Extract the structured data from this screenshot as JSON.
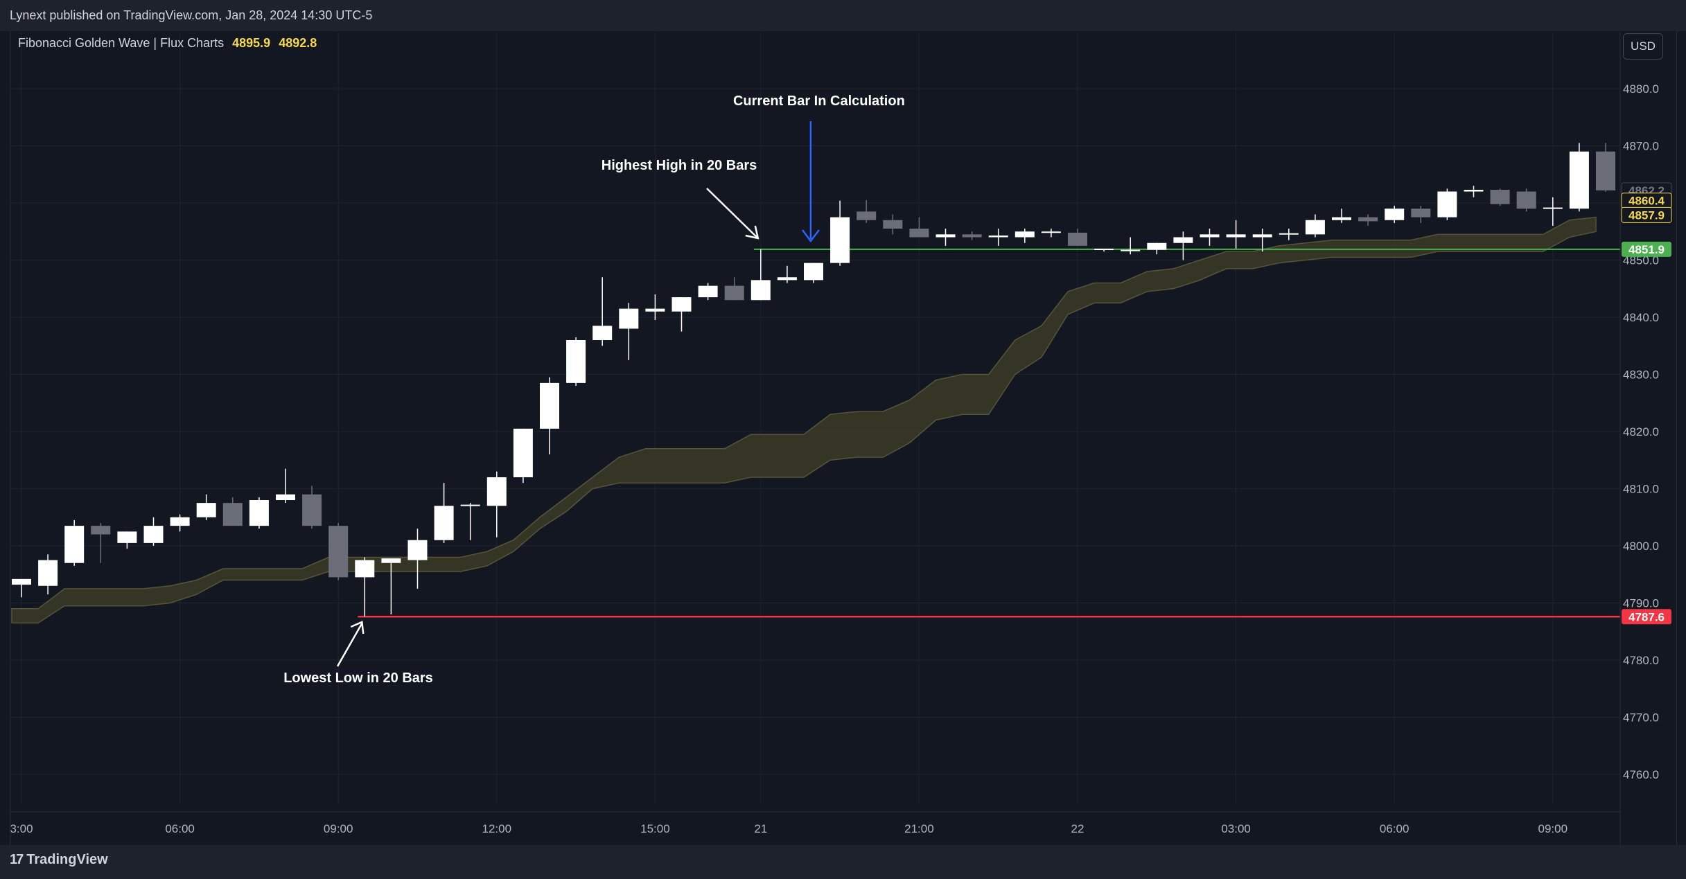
{
  "header": {
    "publisher_text": "Lynext published on TradingView.com, Jan 28, 2024 14:30 UTC-5"
  },
  "legend": {
    "indicator": "Fibonacci Golden Wave | Flux Charts",
    "value1": "4895.9",
    "value2": "4892.8"
  },
  "currency_button": "USD",
  "footer": {
    "brand": "TradingView",
    "logo_icon": "tradingview-logo-icon"
  },
  "colors": {
    "bullish": "#ffffff",
    "bearish": "#6b6e78",
    "band_fill": "#3a3926",
    "band_stroke": "#57543a",
    "high_line": "#4caf50",
    "low_line": "#f23645",
    "annotation_arrow": "#ffffff",
    "calc_arrow": "#2962ff",
    "tag_yellow": "#f7d94c",
    "grid": "#1f2330"
  },
  "chart_data": {
    "type": "candlestick",
    "x_axis": {
      "tick_labels": [
        "3:00",
        "06:00",
        "09:00",
        "12:00",
        "15:00",
        "21",
        "21:00",
        "22",
        "03:00",
        "06:00",
        "09:00"
      ],
      "tick_bar_index": [
        0,
        6,
        12,
        18,
        24,
        28,
        34,
        40,
        46,
        52,
        58
      ]
    },
    "y_axis": {
      "ylim": [
        4757,
        4885
      ],
      "tick_labels": [
        "4880.0",
        "4870.0",
        "4860.0",
        "4850.0",
        "4840.0",
        "4830.0",
        "4820.0",
        "4810.0",
        "4800.0",
        "4790.0",
        "4780.0",
        "4770.0",
        "4760.0"
      ],
      "tick_values": [
        4880,
        4870,
        4860,
        4850,
        4840,
        4830,
        4820,
        4810,
        4800,
        4790,
        4780,
        4770,
        4760
      ]
    },
    "candles": [
      {
        "o": 4793.2,
        "h": 4794.0,
        "l": 4791.0,
        "c": 4794.2
      },
      {
        "o": 4793.0,
        "h": 4798.5,
        "l": 4791.5,
        "c": 4797.5
      },
      {
        "o": 4797.0,
        "h": 4804.5,
        "l": 4796.5,
        "c": 4803.5
      },
      {
        "o": 4803.5,
        "h": 4804.0,
        "l": 4797.0,
        "c": 4802.0
      },
      {
        "o": 4800.5,
        "h": 4802.5,
        "l": 4799.5,
        "c": 4802.5
      },
      {
        "o": 4800.5,
        "h": 4805.0,
        "l": 4800.0,
        "c": 4803.5
      },
      {
        "o": 4803.5,
        "h": 4805.5,
        "l": 4802.5,
        "c": 4805.0
      },
      {
        "o": 4805.0,
        "h": 4809.0,
        "l": 4804.5,
        "c": 4807.5
      },
      {
        "o": 4807.5,
        "h": 4808.5,
        "l": 4803.5,
        "c": 4803.5
      },
      {
        "o": 4803.5,
        "h": 4808.5,
        "l": 4803.0,
        "c": 4808.0
      },
      {
        "o": 4808.0,
        "h": 4813.5,
        "l": 4807.5,
        "c": 4809.0
      },
      {
        "o": 4809.0,
        "h": 4810.5,
        "l": 4803.0,
        "c": 4803.5
      },
      {
        "o": 4803.5,
        "h": 4804.0,
        "l": 4794.0,
        "c": 4794.5
      },
      {
        "o": 4794.5,
        "h": 4798.0,
        "l": 4787.6,
        "c": 4797.5
      },
      {
        "o": 4797.0,
        "h": 4797.5,
        "l": 4788.0,
        "c": 4797.8
      },
      {
        "o": 4797.5,
        "h": 4803.0,
        "l": 4792.5,
        "c": 4801.0
      },
      {
        "o": 4801.0,
        "h": 4811.0,
        "l": 4800.5,
        "c": 4807.0
      },
      {
        "o": 4807.0,
        "h": 4807.5,
        "l": 4801.0,
        "c": 4807.2
      },
      {
        "o": 4807.0,
        "h": 4813.0,
        "l": 4801.5,
        "c": 4812.0
      },
      {
        "o": 4812.0,
        "h": 4820.5,
        "l": 4811.0,
        "c": 4820.5
      },
      {
        "o": 4820.5,
        "h": 4829.5,
        "l": 4816.0,
        "c": 4828.5
      },
      {
        "o": 4828.5,
        "h": 4836.5,
        "l": 4828.0,
        "c": 4836.0
      },
      {
        "o": 4836.0,
        "h": 4847.0,
        "l": 4835.0,
        "c": 4838.5
      },
      {
        "o": 4838.0,
        "h": 4842.5,
        "l": 4832.5,
        "c": 4841.5
      },
      {
        "o": 4841.0,
        "h": 4844.0,
        "l": 4839.5,
        "c": 4841.5
      },
      {
        "o": 4841.0,
        "h": 4843.5,
        "l": 4837.5,
        "c": 4843.5
      },
      {
        "o": 4843.5,
        "h": 4846.0,
        "l": 4843.0,
        "c": 4845.5
      },
      {
        "o": 4845.5,
        "h": 4847.0,
        "l": 4843.0,
        "c": 4843.0
      },
      {
        "o": 4843.0,
        "h": 4851.9,
        "l": 4843.0,
        "c": 4846.5
      },
      {
        "o": 4846.5,
        "h": 4849.0,
        "l": 4846.0,
        "c": 4847.0
      },
      {
        "o": 4846.5,
        "h": 4849.5,
        "l": 4846.0,
        "c": 4849.5
      },
      {
        "o": 4849.5,
        "h": 4860.4,
        "l": 4849.0,
        "c": 4857.5
      },
      {
        "o": 4858.5,
        "h": 4860.5,
        "l": 4856.5,
        "c": 4857.0
      },
      {
        "o": 4857.0,
        "h": 4858.0,
        "l": 4854.5,
        "c": 4855.5
      },
      {
        "o": 4855.5,
        "h": 4857.5,
        "l": 4854.0,
        "c": 4854.0
      },
      {
        "o": 4854.0,
        "h": 4855.5,
        "l": 4852.5,
        "c": 4854.5
      },
      {
        "o": 4854.5,
        "h": 4855.0,
        "l": 4853.5,
        "c": 4854.0
      },
      {
        "o": 4854.0,
        "h": 4855.5,
        "l": 4852.5,
        "c": 4854.3
      },
      {
        "o": 4854.0,
        "h": 4855.5,
        "l": 4853.0,
        "c": 4855.0
      },
      {
        "o": 4854.8,
        "h": 4855.5,
        "l": 4854.0,
        "c": 4855.0
      },
      {
        "o": 4854.8,
        "h": 4855.5,
        "l": 4852.5,
        "c": 4852.5
      },
      {
        "o": 4852.0,
        "h": 4852.0,
        "l": 4851.5,
        "c": 4852.0
      },
      {
        "o": 4851.6,
        "h": 4854.0,
        "l": 4851.0,
        "c": 4851.8
      },
      {
        "o": 4851.8,
        "h": 4853.0,
        "l": 4851.0,
        "c": 4853.0
      },
      {
        "o": 4853.0,
        "h": 4855.0,
        "l": 4850.0,
        "c": 4854.0
      },
      {
        "o": 4854.0,
        "h": 4855.5,
        "l": 4852.5,
        "c": 4854.5
      },
      {
        "o": 4854.0,
        "h": 4857.0,
        "l": 4852.0,
        "c": 4854.5
      },
      {
        "o": 4854.0,
        "h": 4855.5,
        "l": 4851.5,
        "c": 4854.5
      },
      {
        "o": 4854.5,
        "h": 4855.5,
        "l": 4853.5,
        "c": 4854.7
      },
      {
        "o": 4854.5,
        "h": 4858.0,
        "l": 4854.0,
        "c": 4857.0
      },
      {
        "o": 4857.0,
        "h": 4859.0,
        "l": 4856.5,
        "c": 4857.5
      },
      {
        "o": 4857.5,
        "h": 4858.0,
        "l": 4856.0,
        "c": 4856.8
      },
      {
        "o": 4857.0,
        "h": 4859.5,
        "l": 4856.5,
        "c": 4859.0
      },
      {
        "o": 4859.0,
        "h": 4859.5,
        "l": 4856.5,
        "c": 4857.5
      },
      {
        "o": 4857.5,
        "h": 4862.5,
        "l": 4857.0,
        "c": 4862.0
      },
      {
        "o": 4862.0,
        "h": 4863.0,
        "l": 4861.0,
        "c": 4862.3
      },
      {
        "o": 4862.3,
        "h": 4862.5,
        "l": 4859.5,
        "c": 4859.8
      },
      {
        "o": 4862.0,
        "h": 4862.5,
        "l": 4858.5,
        "c": 4859.0
      },
      {
        "o": 4859.0,
        "h": 4861.0,
        "l": 4856.0,
        "c": 4859.2
      },
      {
        "o": 4859.0,
        "h": 4870.5,
        "l": 4858.5,
        "c": 4869.0
      },
      {
        "o": 4869.0,
        "h": 4870.5,
        "l": 4862.0,
        "c": 4862.2
      }
    ],
    "band_upper": [
      4789,
      4789,
      4792.5,
      4792.5,
      4792.5,
      4792.5,
      4793,
      4794,
      4796,
      4796,
      4796,
      4796,
      4798,
      4798,
      4798,
      4798,
      4798,
      4798,
      4799,
      4801,
      4805,
      4808.5,
      4812,
      4815.5,
      4817,
      4817,
      4817,
      4817,
      4819.5,
      4819.5,
      4819.5,
      4823,
      4823.5,
      4823.5,
      4825.5,
      4829,
      4830,
      4830,
      4836,
      4838.5,
      4844.5,
      4846,
      4846,
      4848,
      4848.5,
      4850,
      4851.5,
      4851.5,
      4852.5,
      4853,
      4853.5,
      4853.5,
      4853.5,
      4853.5,
      4854.5,
      4854.5,
      4854.5,
      4854.5,
      4854.5,
      4857,
      4857.5
    ],
    "band_lower": [
      4786.5,
      4786.5,
      4789.5,
      4789.5,
      4789.5,
      4789.5,
      4790,
      4791.5,
      4794,
      4794,
      4794,
      4794,
      4795.5,
      4795.5,
      4795.5,
      4795.5,
      4795.5,
      4795.5,
      4796.5,
      4799,
      4803,
      4806,
      4810,
      4811,
      4811,
      4811,
      4811,
      4811,
      4812,
      4812,
      4812,
      4815,
      4815.5,
      4815.5,
      4818,
      4822,
      4823,
      4823,
      4830,
      4833,
      4840.5,
      4842.5,
      4842.5,
      4844.5,
      4845,
      4846.5,
      4848.5,
      4848.5,
      4849.5,
      4850,
      4850.5,
      4850.5,
      4850.5,
      4850.5,
      4851.5,
      4851.5,
      4851.5,
      4851.5,
      4851.5,
      4854,
      4855
    ],
    "highest_high": {
      "value": 4851.9,
      "start_bar": 28,
      "label": "4851.9"
    },
    "lowest_low": {
      "value": 4787.6,
      "start_bar": 13,
      "label": "4787.6"
    },
    "price_tags": [
      {
        "value": 4862.2,
        "label": "4862.2",
        "style": "last"
      },
      {
        "value": 4860.4,
        "label": "4860.4",
        "style": "yellow"
      },
      {
        "value": 4857.9,
        "label": "4857.9",
        "style": "yellow"
      }
    ],
    "annotations": [
      {
        "text": "Current Bar In Calculation",
        "bar": 29.0
      },
      {
        "text": "Highest High in 20 Bars",
        "bar": 28.0
      },
      {
        "text": "Lowest Low in 20 Bars",
        "bar": 13.0
      }
    ]
  }
}
